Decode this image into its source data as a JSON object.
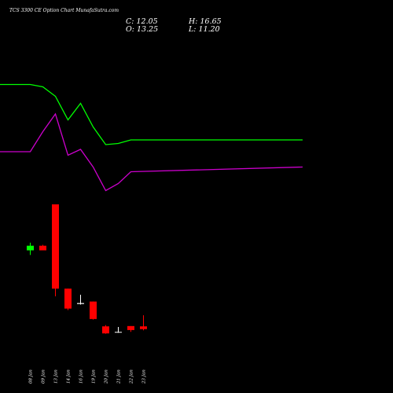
{
  "title": "TCS 3300 CE Option Chart MunafaSutra.com",
  "ohlc": {
    "c": "C: 12.05",
    "h": "H: 16.65",
    "o": "O: 13.25",
    "l": "L: 11.20"
  },
  "chart_data": {
    "type": "candlestick",
    "title": "TCS 3300 CE Option Chart MunafaSutra.com",
    "categories": [
      "08 Jan",
      "09 Jan",
      "13 Jan",
      "14 Jan",
      "16 Jan",
      "19 Jan",
      "20 Jan",
      "21 Jan",
      "22 Jan",
      "23 Jan"
    ],
    "candles": [
      {
        "date": "08 Jan",
        "open": 40.0,
        "high": 42.5,
        "low": 38.5,
        "close": 41.5,
        "color": "#00ff00"
      },
      {
        "date": "09 Jan",
        "open": 41.5,
        "high": 41.8,
        "low": 40.0,
        "close": 40.0,
        "color": "#ff0000"
      },
      {
        "date": "13 Jan",
        "open": 55.0,
        "high": 55.0,
        "low": 25.0,
        "close": 27.5,
        "color": "#ff0000"
      },
      {
        "date": "14 Jan",
        "open": 27.5,
        "high": 27.5,
        "low": 20.5,
        "close": 21.0,
        "color": "#ff0000"
      },
      {
        "date": "16 Jan",
        "open": 22.8,
        "high": 25.5,
        "low": 22.3,
        "close": 22.5,
        "color": "#ffffff"
      },
      {
        "date": "19 Jan",
        "open": 23.3,
        "high": 23.3,
        "low": 17.4,
        "close": 17.6,
        "color": "#ff0000"
      },
      {
        "date": "20 Jan",
        "open": 15.2,
        "high": 15.6,
        "low": 12.8,
        "close": 12.9,
        "color": "#ff0000"
      },
      {
        "date": "21 Jan",
        "open": 13.3,
        "high": 15.0,
        "low": 13.1,
        "close": 13.4,
        "color": "#ffffff"
      },
      {
        "date": "22 Jan",
        "open": 15.3,
        "high": 15.3,
        "low": 13.4,
        "close": 14.0,
        "color": "#ff0000"
      },
      {
        "date": "23 Jan",
        "open": 15.2,
        "high": 18.8,
        "low": 13.9,
        "close": 14.3,
        "color": "#ff0000"
      }
    ],
    "lines": [
      {
        "color": "#00ff00",
        "x": [
          "",
          "08 Jan",
          "09 Jan",
          "13 Jan",
          "14 Jan",
          "16 Jan",
          "19 Jan",
          "20 Jan",
          "21 Jan",
          "22 Jan",
          "23 Jan"
        ],
        "values": [
          105,
          105,
          103,
          95,
          75,
          89,
          69,
          54,
          55,
          58,
          58
        ]
      },
      {
        "color": "#cc00cc",
        "x": [
          "",
          "08 Jan",
          "09 Jan",
          "13 Jan",
          "14 Jan",
          "16 Jan",
          "19 Jan",
          "20 Jan",
          "21 Jan",
          "22 Jan",
          "23 Jan"
        ],
        "values": [
          48,
          48,
          65,
          80,
          45,
          50,
          35,
          15,
          21,
          31,
          35
        ]
      }
    ],
    "grid": false
  }
}
